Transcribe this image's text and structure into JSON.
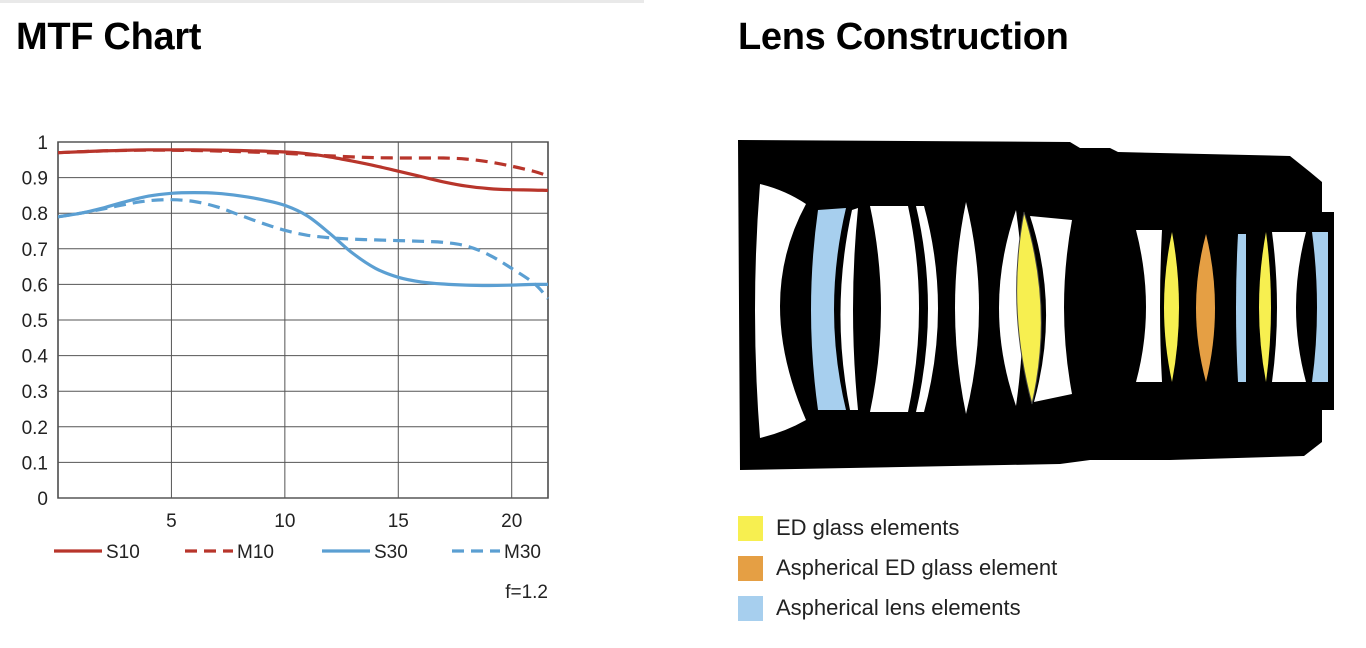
{
  "colors": {
    "s10": "#b8352b",
    "m10": "#b8352b",
    "s30": "#5b9fd2",
    "m30": "#5b9fd2",
    "ed": "#f7ef50",
    "aspherical_ed": "#e59f44",
    "aspherical": "#a7cfee",
    "body": "#000000"
  },
  "mtf_title": "MTF Chart",
  "lens_title": "Lens Construction",
  "chart_data": {
    "type": "line",
    "title": "MTF Chart",
    "xlabel": "",
    "ylabel": "",
    "xlim": [
      0,
      21.6
    ],
    "ylim": [
      0,
      1
    ],
    "grid": true,
    "y_ticks": [
      "0",
      "0.1",
      "0.2",
      "0.3",
      "0.4",
      "0.5",
      "0.6",
      "0.7",
      "0.8",
      "0.9",
      "1"
    ],
    "x_ticks": [
      "5",
      "10",
      "15",
      "20"
    ],
    "x_tick_values": [
      5,
      10,
      15,
      20
    ],
    "annotation": "f=1.2",
    "series": [
      {
        "name": "S10",
        "style": "solid",
        "x": [
          0,
          2,
          4,
          6,
          8,
          10,
          11,
          12,
          13,
          14,
          15,
          16,
          17,
          18,
          19,
          20,
          21,
          21.6
        ],
        "y": [
          0.97,
          0.975,
          0.978,
          0.978,
          0.976,
          0.972,
          0.967,
          0.958,
          0.946,
          0.933,
          0.918,
          0.903,
          0.888,
          0.876,
          0.869,
          0.866,
          0.865,
          0.864
        ]
      },
      {
        "name": "M10",
        "style": "dashed",
        "x": [
          0,
          2,
          4,
          6,
          8,
          10,
          12,
          14,
          16,
          17,
          18,
          19,
          20,
          21,
          21.6
        ],
        "y": [
          0.97,
          0.975,
          0.977,
          0.976,
          0.973,
          0.968,
          0.961,
          0.956,
          0.955,
          0.955,
          0.952,
          0.944,
          0.932,
          0.917,
          0.905
        ]
      },
      {
        "name": "S30",
        "style": "solid",
        "x": [
          0,
          1,
          2,
          3,
          4,
          5,
          6,
          7,
          8,
          9,
          10,
          11,
          12,
          13,
          14,
          15,
          16,
          17,
          18,
          19,
          20,
          21,
          21.6
        ],
        "y": [
          0.79,
          0.8,
          0.815,
          0.833,
          0.848,
          0.856,
          0.858,
          0.856,
          0.849,
          0.838,
          0.822,
          0.792,
          0.742,
          0.687,
          0.645,
          0.62,
          0.607,
          0.601,
          0.598,
          0.597,
          0.598,
          0.6,
          0.6
        ]
      },
      {
        "name": "M30",
        "style": "dashed",
        "x": [
          0,
          1,
          2,
          3,
          4,
          5,
          6,
          7,
          8,
          9,
          10,
          11,
          12,
          13,
          14,
          15,
          16,
          17,
          18,
          19,
          20,
          21,
          21.6
        ],
        "y": [
          0.79,
          0.8,
          0.812,
          0.825,
          0.835,
          0.838,
          0.833,
          0.818,
          0.795,
          0.772,
          0.752,
          0.738,
          0.731,
          0.727,
          0.725,
          0.723,
          0.721,
          0.718,
          0.708,
          0.683,
          0.645,
          0.602,
          0.56
        ]
      }
    ]
  },
  "legend": {
    "ed": "ED glass elements",
    "aspherical_ed": "Aspherical ED glass element",
    "aspherical": "Aspherical lens elements"
  }
}
